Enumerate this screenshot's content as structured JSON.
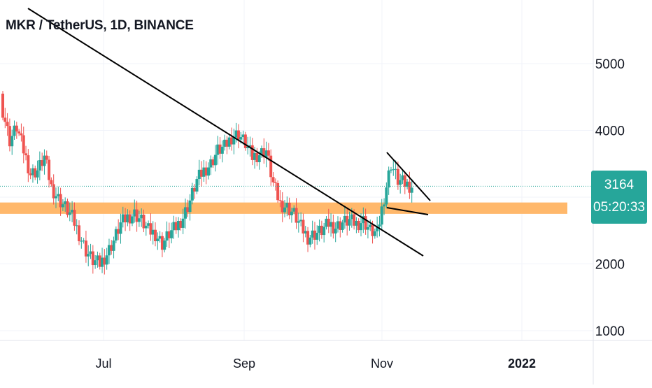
{
  "header": {
    "title": "MKR / TetherUS, 1D, BINANCE"
  },
  "price_axis": {
    "ticks": [
      "5000",
      "4000",
      "2000",
      "1000"
    ]
  },
  "time_axis": {
    "ticks": [
      "Jul",
      "Sep",
      "Nov",
      "2022"
    ]
  },
  "last_price": {
    "value": "3164",
    "countdown": "05:20:33"
  },
  "colors": {
    "up": "#26a69a",
    "down": "#ef5350",
    "zone": "#ffb86b",
    "grid": "#f0f3fa",
    "axis_text": "#131722"
  },
  "chart_data": {
    "type": "candlestick",
    "symbol": "MKR / TetherUS",
    "interval": "1D",
    "exchange": "BINANCE",
    "x_ticks": [
      "Jul",
      "Sep",
      "Nov",
      "2022"
    ],
    "y_ticks": [
      5000,
      4000,
      2000,
      1000
    ],
    "last_price": 3164,
    "support_zone": [
      2750,
      2920
    ],
    "closes": [
      4300,
      3850,
      4050,
      3700,
      3350,
      3400,
      3600,
      3150,
      2980,
      2850,
      2700,
      2450,
      2200,
      2050,
      2000,
      2150,
      2350,
      2600,
      2700,
      2750,
      2650,
      2500,
      2450,
      2300,
      2450,
      2550,
      2700,
      2950,
      3250,
      3400,
      3500,
      3700,
      3750,
      3900,
      3950,
      3800,
      3600,
      3650,
      3700,
      3200,
      2900,
      2850,
      2750,
      2550,
      2400,
      2450,
      2500,
      2600,
      2550,
      2620,
      2650,
      2600,
      2650,
      2500,
      2450,
      3000,
      3500,
      3250,
      3200,
      3164
    ]
  }
}
